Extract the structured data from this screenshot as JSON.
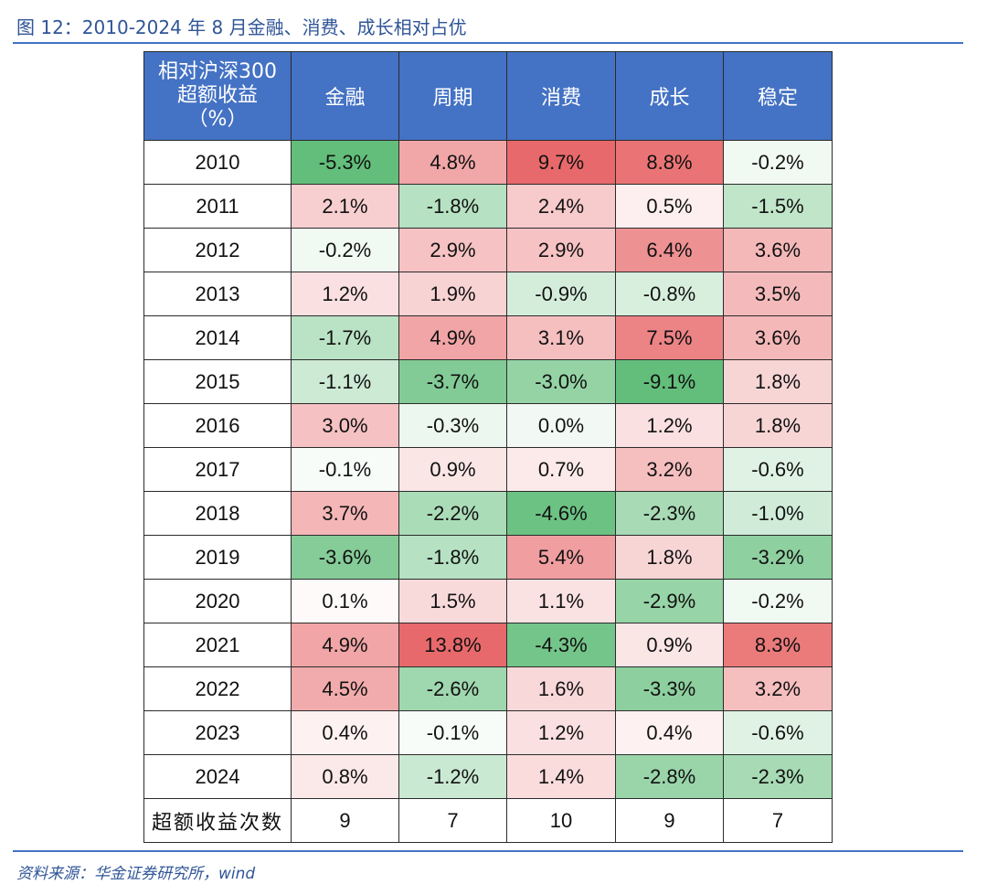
{
  "title": "图 12：2010-2024 年 8 月金融、消费、成长相对占优",
  "table": {
    "corner_header": [
      "相对沪深300",
      "超额收益",
      "（%）"
    ],
    "columns": [
      "金融",
      "周期",
      "消费",
      "成长",
      "稳定"
    ],
    "rows": [
      {
        "year": "2010",
        "values": [
          "-5.3%",
          "4.8%",
          "9.7%",
          "8.8%",
          "-0.2%"
        ]
      },
      {
        "year": "2011",
        "values": [
          "2.1%",
          "-1.8%",
          "2.4%",
          "0.5%",
          "-1.5%"
        ]
      },
      {
        "year": "2012",
        "values": [
          "-0.2%",
          "2.9%",
          "2.9%",
          "6.4%",
          "3.6%"
        ]
      },
      {
        "year": "2013",
        "values": [
          "1.2%",
          "1.9%",
          "-0.9%",
          "-0.8%",
          "3.5%"
        ]
      },
      {
        "year": "2014",
        "values": [
          "-1.7%",
          "4.9%",
          "3.1%",
          "7.5%",
          "3.6%"
        ]
      },
      {
        "year": "2015",
        "values": [
          "-1.1%",
          "-3.7%",
          "-3.0%",
          "-9.1%",
          "1.8%"
        ]
      },
      {
        "year": "2016",
        "values": [
          "3.0%",
          "-0.3%",
          "0.0%",
          "1.2%",
          "1.8%"
        ]
      },
      {
        "year": "2017",
        "values": [
          "-0.1%",
          "0.9%",
          "0.7%",
          "3.2%",
          "-0.6%"
        ]
      },
      {
        "year": "2018",
        "values": [
          "3.7%",
          "-2.2%",
          "-4.6%",
          "-2.3%",
          "-1.0%"
        ]
      },
      {
        "year": "2019",
        "values": [
          "-3.6%",
          "-1.8%",
          "5.4%",
          "1.8%",
          "-3.2%"
        ]
      },
      {
        "year": "2020",
        "values": [
          "0.1%",
          "1.5%",
          "1.1%",
          "-2.9%",
          "-0.2%"
        ]
      },
      {
        "year": "2021",
        "values": [
          "4.9%",
          "13.8%",
          "-4.3%",
          "0.9%",
          "8.3%"
        ]
      },
      {
        "year": "2022",
        "values": [
          "4.5%",
          "-2.6%",
          "1.6%",
          "-3.3%",
          "3.2%"
        ]
      },
      {
        "year": "2023",
        "values": [
          "0.4%",
          "-0.1%",
          "1.2%",
          "0.4%",
          "-0.6%"
        ]
      },
      {
        "year": "2024",
        "values": [
          "0.8%",
          "-1.2%",
          "1.4%",
          "-2.8%",
          "-2.3%"
        ]
      }
    ],
    "count_row": {
      "label": "超额收益次数",
      "values": [
        "9",
        "7",
        "10",
        "9",
        "7"
      ]
    }
  },
  "source": "资料来源：华金证券研究所，wind",
  "colors": {
    "header_bg": "#4472C4",
    "positive_max": "#E8696B",
    "negative_max": "#63BE7B",
    "count_text": "#E02020",
    "title_text": "#2F5597"
  }
}
